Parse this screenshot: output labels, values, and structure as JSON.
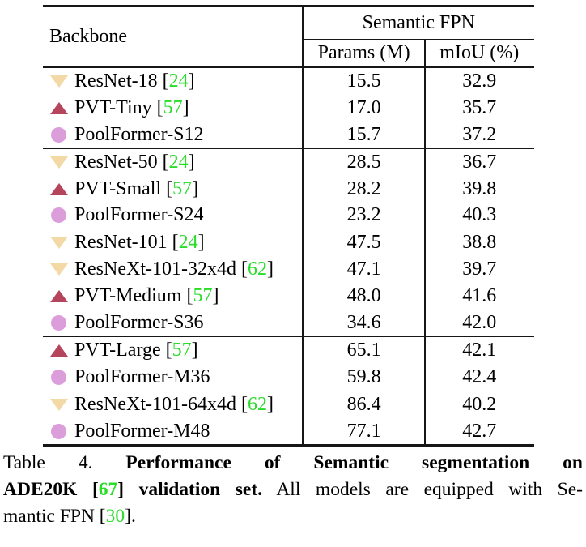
{
  "colors": {
    "wheat": "#F2D9A5",
    "crimson": "#B5455C",
    "plum": "#DB9EDB",
    "green": "#29DD29",
    "rule": "#161616"
  },
  "table": {
    "header": {
      "backbone": "Backbone",
      "group": "Semantic FPN",
      "params": "Params (M)",
      "miou": "mIoU (%)"
    },
    "rows": [
      {
        "icon": "icon-tri-down",
        "pre": "ResNet-18 [",
        "cite": "24",
        "post": "]",
        "params": "15.5",
        "miou": "32.9"
      },
      {
        "icon": "icon-tri-up",
        "pre": "PVT-Tiny [",
        "cite": "57",
        "post": "]",
        "params": "17.0",
        "miou": "35.7"
      },
      {
        "icon": "icon-circle",
        "pre": "PoolFormer-S12",
        "cite": "",
        "post": "",
        "params": "15.7",
        "miou": "37.2"
      },
      {
        "icon": "icon-tri-down",
        "pre": "ResNet-50 [",
        "cite": "24",
        "post": "]",
        "params": "28.5",
        "miou": "36.7"
      },
      {
        "icon": "icon-tri-up",
        "pre": "PVT-Small [",
        "cite": "57",
        "post": "]",
        "params": "28.2",
        "miou": "39.8"
      },
      {
        "icon": "icon-circle",
        "pre": "PoolFormer-S24",
        "cite": "",
        "post": "",
        "params": "23.2",
        "miou": "40.3"
      },
      {
        "icon": "icon-tri-down",
        "pre": "ResNet-101 [",
        "cite": "24",
        "post": "]",
        "params": "47.5",
        "miou": "38.8"
      },
      {
        "icon": "icon-tri-down",
        "pre": "ResNeXt-101-32x4d [",
        "cite": "62",
        "post": "]",
        "params": "47.1",
        "miou": "39.7"
      },
      {
        "icon": "icon-tri-up",
        "pre": "PVT-Medium [",
        "cite": "57",
        "post": "]",
        "params": "48.0",
        "miou": "41.6"
      },
      {
        "icon": "icon-circle",
        "pre": "PoolFormer-S36",
        "cite": "",
        "post": "",
        "params": "34.6",
        "miou": "42.0"
      },
      {
        "icon": "icon-tri-up",
        "pre": "PVT-Large [",
        "cite": "57",
        "post": "]",
        "params": "65.1",
        "miou": "42.1"
      },
      {
        "icon": "icon-circle",
        "pre": "PoolFormer-M36",
        "cite": "",
        "post": "",
        "params": "59.8",
        "miou": "42.4"
      },
      {
        "icon": "icon-tri-down",
        "pre": "ResNeXt-101-64x4d [",
        "cite": "62",
        "post": "]",
        "params": "86.4",
        "miou": "40.2"
      },
      {
        "icon": "icon-circle",
        "pre": "PoolFormer-M48",
        "cite": "",
        "post": "",
        "params": "77.1",
        "miou": "42.7"
      }
    ]
  },
  "caption": {
    "l1a": "Table 4.",
    "l1b": "Performance of Semantic segmentation on",
    "l2a": "ADE20K [",
    "l2b": "67",
    "l2c": "] validation set.",
    "l2d": "All models are equipped with Se-",
    "l3a": "mantic FPN [",
    "l3b": "30",
    "l3c": "]."
  }
}
